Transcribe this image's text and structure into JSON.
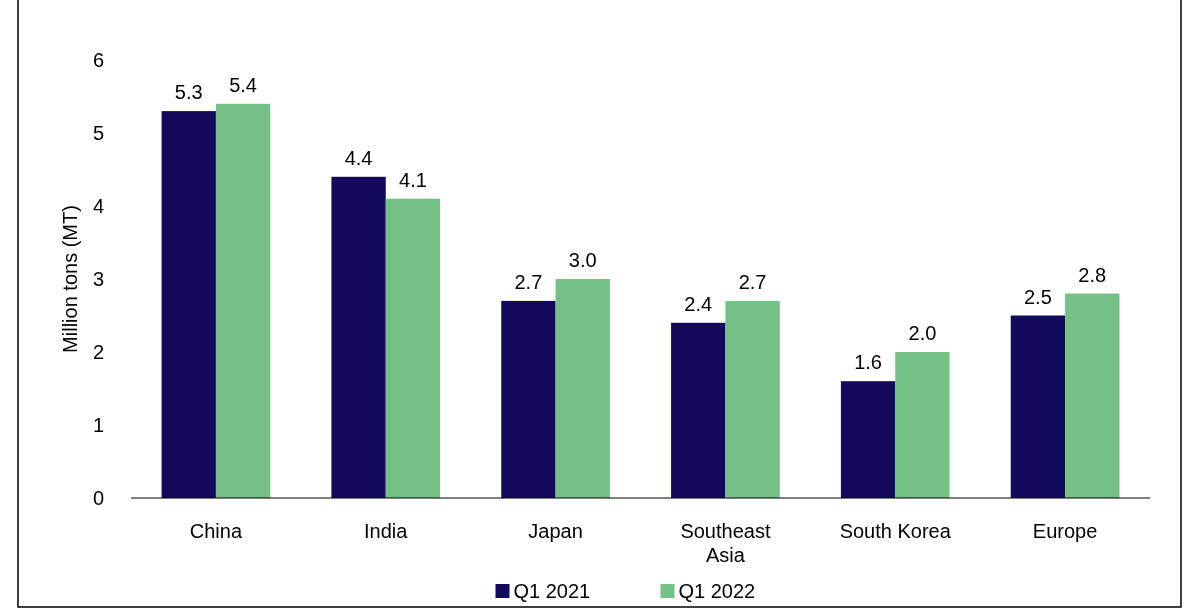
{
  "chart_data": {
    "type": "bar",
    "ylabel": "Million tons (MT)",
    "categories": [
      "China",
      "India",
      "Japan",
      "Southeast Asia",
      "South Korea",
      "Europe"
    ],
    "series": [
      {
        "name": "Q1 2021",
        "color": "#140a5c",
        "values": [
          5.3,
          4.4,
          2.7,
          2.4,
          1.6,
          2.5
        ],
        "value_labels": [
          "5.3",
          "4.4",
          "2.7",
          "2.4",
          "1.6",
          "2.5"
        ]
      },
      {
        "name": "Q1 2022",
        "color": "#75c087",
        "values": [
          5.4,
          4.1,
          3.0,
          2.7,
          2.0,
          2.8
        ],
        "value_labels": [
          "5.4",
          "4.1",
          "3.0",
          "2.7",
          "2.0",
          "2.8"
        ]
      }
    ],
    "ylim": [
      0,
      6
    ],
    "yticks": [
      0,
      1,
      2,
      3,
      4,
      5,
      6
    ],
    "legend": "bottom",
    "grid": false
  }
}
